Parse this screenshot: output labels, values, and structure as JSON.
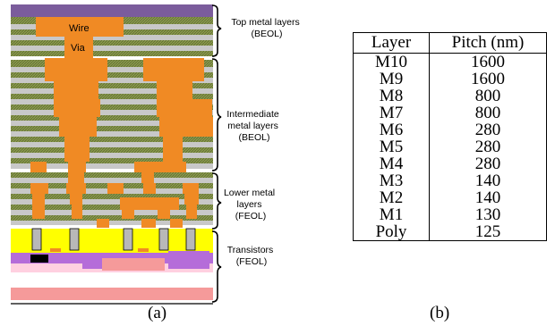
{
  "figure": {
    "captions": {
      "a": "(a)",
      "b": "(b)"
    },
    "labels": {
      "wire": "Wire",
      "via": "Via",
      "top": [
        "Top metal layers",
        "(BEOL)"
      ],
      "intermediate": [
        "Intermediate",
        "metal layers",
        "(BEOL)"
      ],
      "lower": [
        "Lower metal",
        "layers",
        "(FEOL)"
      ],
      "transistors": [
        "Transistors",
        "(FEOL)"
      ]
    },
    "colors": {
      "top_band": "#7b5c9c",
      "metal": "#f08a24",
      "dielectric_green": "#8a9a4c",
      "dielectric_gray": "#c8c8c8",
      "contact_gray": "#b8b8b8",
      "yellow": "#ffff00",
      "purple": "#b56cd9",
      "pink": "#f59a9a",
      "light_pink": "#ffd0e0",
      "black": "#000000"
    }
  },
  "table": {
    "headers": [
      "Layer",
      "Pitch (nm)"
    ],
    "rows": [
      [
        "M10",
        "1600"
      ],
      [
        "M9",
        "1600"
      ],
      [
        "M8",
        "800"
      ],
      [
        "M7",
        "800"
      ],
      [
        "M6",
        "280"
      ],
      [
        "M5",
        "280"
      ],
      [
        "M4",
        "280"
      ],
      [
        "M3",
        "140"
      ],
      [
        "M2",
        "140"
      ],
      [
        "M1",
        "130"
      ],
      [
        "Poly",
        "125"
      ]
    ]
  }
}
